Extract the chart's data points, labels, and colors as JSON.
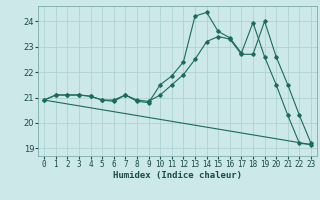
{
  "xlabel": "Humidex (Indice chaleur)",
  "bg_color": "#cce8e8",
  "grid_color": "#aacece",
  "line_color": "#1a6b5a",
  "xlim": [
    -0.5,
    23.5
  ],
  "ylim": [
    18.7,
    24.6
  ],
  "yticks": [
    19,
    20,
    21,
    22,
    23,
    24
  ],
  "xticks": [
    0,
    1,
    2,
    3,
    4,
    5,
    6,
    7,
    8,
    9,
    10,
    11,
    12,
    13,
    14,
    15,
    16,
    17,
    18,
    19,
    20,
    21,
    22,
    23
  ],
  "line1_x": [
    0,
    1,
    2,
    3,
    4,
    5,
    6,
    7,
    8,
    9,
    10,
    11,
    12,
    13,
    14,
    15,
    16,
    17,
    18,
    19,
    20,
    21,
    22,
    23
  ],
  "line1_y": [
    20.9,
    21.1,
    21.1,
    21.1,
    21.05,
    20.9,
    20.9,
    21.1,
    20.9,
    20.85,
    21.1,
    21.5,
    21.9,
    22.5,
    23.2,
    23.4,
    23.3,
    22.7,
    22.7,
    24.0,
    22.6,
    21.5,
    20.3,
    19.2
  ],
  "line2_x": [
    0,
    1,
    2,
    3,
    4,
    5,
    6,
    7,
    8,
    9,
    10,
    11,
    12,
    13,
    14,
    15,
    16,
    17,
    18,
    19,
    20,
    21,
    22,
    23
  ],
  "line2_y": [
    20.9,
    21.1,
    21.1,
    21.1,
    21.05,
    20.9,
    20.85,
    21.1,
    20.85,
    20.8,
    21.5,
    21.85,
    22.4,
    24.2,
    24.35,
    23.6,
    23.35,
    22.75,
    23.95,
    22.6,
    21.5,
    20.3,
    19.2,
    19.15
  ],
  "line3_x": [
    0,
    23
  ],
  "line3_y": [
    20.9,
    19.15
  ],
  "tick_fontsize": 5.5,
  "xlabel_fontsize": 6.5
}
